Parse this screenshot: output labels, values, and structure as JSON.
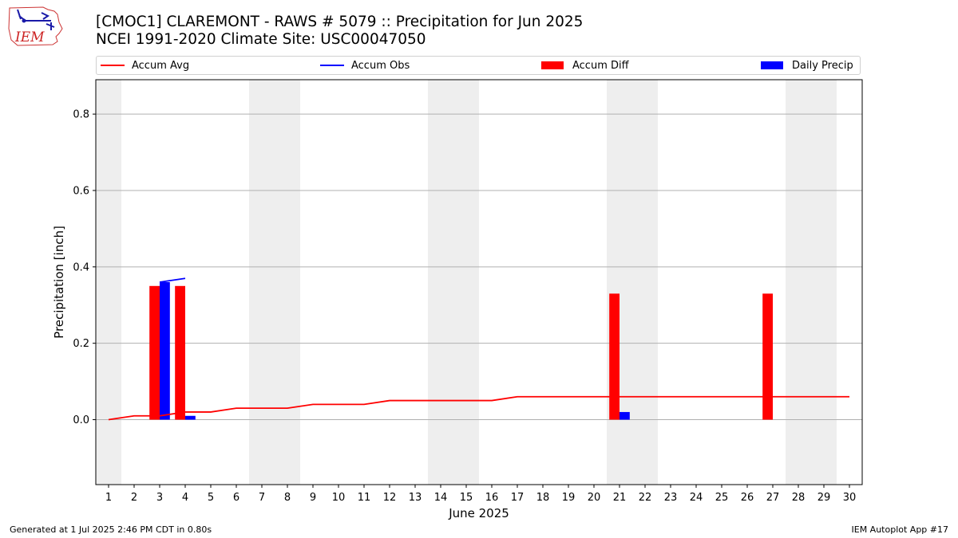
{
  "header": {
    "logo_text": "IEM",
    "title_line1": "[CMOC1] CLAREMONT - RAWS # 5079 :: Precipitation for Jun 2025",
    "title_line2": "NCEI 1991-2020 Climate Site: USC00047050"
  },
  "legend": {
    "accum_avg": "Accum Avg",
    "accum_obs": "Accum Obs",
    "accum_diff": "Accum Diff",
    "daily_precip": "Daily Precip"
  },
  "footer": {
    "left": "Generated at 1 Jul 2025 2:46 PM CDT in 0.80s",
    "right": "IEM Autoplot App #17"
  },
  "colors": {
    "accum_avg": "#ff0000",
    "accum_obs": "#0000ff",
    "accum_diff": "#ff0000",
    "daily_precip": "#0000ff",
    "weekend_shade": "#eeeeee",
    "grid": "#b0b0b0"
  },
  "chart_data": {
    "type": "bar",
    "xlabel": "June 2025",
    "ylabel": "Precipitation [inch]",
    "xlim": [
      0.5,
      30.5
    ],
    "ylim": [
      -0.17,
      0.89
    ],
    "x_ticks": [
      1,
      2,
      3,
      4,
      5,
      6,
      7,
      8,
      9,
      10,
      11,
      12,
      13,
      14,
      15,
      16,
      17,
      18,
      19,
      20,
      21,
      22,
      23,
      24,
      25,
      26,
      27,
      28,
      29,
      30
    ],
    "y_ticks": [
      0.0,
      0.2,
      0.4,
      0.6,
      0.8
    ],
    "y_tick_labels": [
      "0.0",
      "0.2",
      "0.4",
      "0.6",
      "0.8"
    ],
    "grid": "horizontal",
    "legend_position": "top",
    "weekend_days": [
      [
        1,
        1
      ],
      [
        7,
        8
      ],
      [
        14,
        15
      ],
      [
        21,
        22
      ],
      [
        28,
        29
      ]
    ],
    "series": [
      {
        "name": "Accum Avg",
        "kind": "line",
        "x": [
          1,
          2,
          3,
          4,
          5,
          6,
          7,
          8,
          9,
          10,
          11,
          12,
          13,
          14,
          15,
          16,
          17,
          18,
          19,
          20,
          21,
          22,
          23,
          24,
          25,
          26,
          27,
          28,
          29,
          30
        ],
        "values": [
          0.0,
          0.01,
          0.01,
          0.02,
          0.02,
          0.03,
          0.03,
          0.03,
          0.04,
          0.04,
          0.04,
          0.05,
          0.05,
          0.05,
          0.05,
          0.05,
          0.06,
          0.06,
          0.06,
          0.06,
          0.06,
          0.06,
          0.06,
          0.06,
          0.06,
          0.06,
          0.06,
          0.06,
          0.06,
          0.06
        ]
      },
      {
        "name": "Accum Obs",
        "kind": "line",
        "x": [
          3,
          4
        ],
        "values": [
          0.36,
          0.37
        ]
      },
      {
        "name": "Accum Diff",
        "kind": "bar",
        "x": [
          3,
          4,
          21,
          27
        ],
        "values": [
          0.35,
          0.35,
          0.33,
          0.33
        ]
      },
      {
        "name": "Daily Precip",
        "kind": "bar",
        "x": [
          3,
          4,
          21
        ],
        "values": [
          0.36,
          0.01,
          0.02
        ]
      }
    ]
  }
}
